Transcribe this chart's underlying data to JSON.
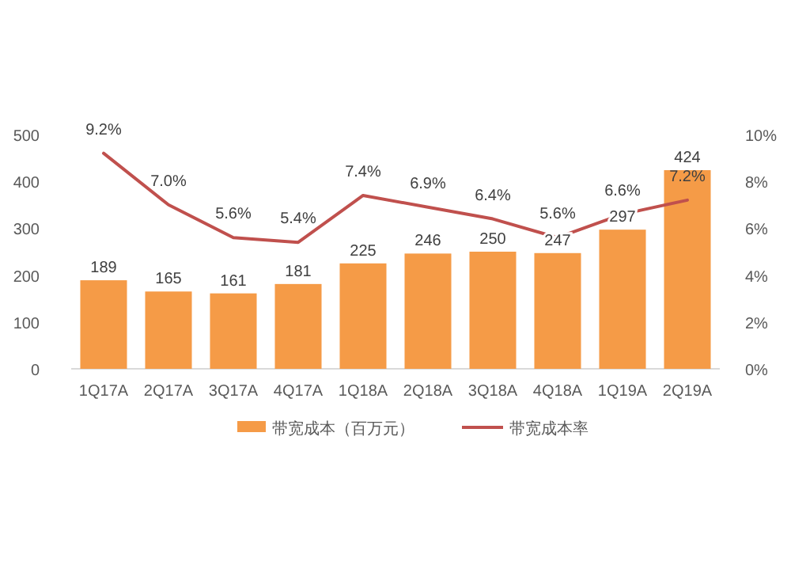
{
  "chart_data": {
    "type": "bar",
    "categories": [
      "1Q17A",
      "2Q17A",
      "3Q17A",
      "4Q17A",
      "1Q18A",
      "2Q18A",
      "3Q18A",
      "4Q18A",
      "1Q19A",
      "2Q19A"
    ],
    "series": [
      {
        "name": "带宽成本（百万元）",
        "color": "#f59b47",
        "values": [
          189,
          165,
          161,
          181,
          225,
          246,
          250,
          247,
          297,
          424
        ],
        "value_labels": [
          "189",
          "165",
          "161",
          "181",
          "225",
          "246",
          "250",
          "247",
          "297",
          "424"
        ]
      },
      {
        "name": "带宽成本率",
        "type": "line",
        "axis": "y2",
        "color": "#c0504d",
        "values": [
          9.2,
          7.0,
          5.6,
          5.4,
          7.4,
          6.9,
          6.4,
          5.6,
          6.6,
          7.2
        ],
        "value_labels": [
          "9.2%",
          "7.0%",
          "5.6%",
          "5.4%",
          "7.4%",
          "6.9%",
          "6.4%",
          "5.6%",
          "6.6%",
          "7.2%"
        ]
      }
    ],
    "ylim": [
      0,
      500
    ],
    "yticks": [
      0,
      100,
      200,
      300,
      400,
      500
    ],
    "y2lim": [
      0,
      10
    ],
    "y2ticks": [
      {
        "value": 0,
        "label": "0%"
      },
      {
        "value": 2,
        "label": "2%"
      },
      {
        "value": 4,
        "label": "4%"
      },
      {
        "value": 6,
        "label": "6%"
      },
      {
        "value": 8,
        "label": "8%"
      },
      {
        "value": 10,
        "label": "10%"
      }
    ],
    "grid": false,
    "legend": "bottom",
    "marker": "none",
    "line_style": "solid"
  }
}
